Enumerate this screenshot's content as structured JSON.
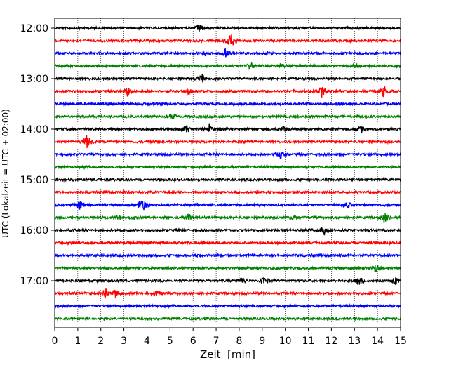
{
  "chart_data": {
    "type": "line",
    "title": "",
    "xlabel": "Zeit  [min]",
    "ylabel": "UTC (Lokalzeit = UTC + 02:00)",
    "xlim": [
      0,
      15
    ],
    "x_ticks": [
      0,
      1,
      2,
      3,
      4,
      5,
      6,
      7,
      8,
      9,
      10,
      11,
      12,
      13,
      14,
      15
    ],
    "x_tick_labels": [
      "0",
      "1",
      "2",
      "3",
      "4",
      "5",
      "6",
      "7",
      "8",
      "9",
      "10",
      "11",
      "12",
      "13",
      "14",
      "15"
    ],
    "y_tick_labels": [
      "12:00",
      "13:00",
      "14:00",
      "15:00",
      "16:00",
      "17:00"
    ],
    "trace_interval_min": 15,
    "grid": "vertical-dotted",
    "traces": [
      {
        "start": "12:00",
        "color": "#000000",
        "events": [
          [
            6.3,
            1.0
          ]
        ]
      },
      {
        "start": "12:15",
        "color": "#ff0000",
        "events": [
          [
            7.65,
            2.0
          ]
        ]
      },
      {
        "start": "12:30",
        "color": "#0000ff",
        "events": [
          [
            7.4,
            1.2
          ],
          [
            6.5,
            0.6
          ]
        ]
      },
      {
        "start": "12:45",
        "color": "#008000",
        "events": [
          [
            8.5,
            0.8
          ],
          [
            9.8,
            0.6
          ],
          [
            13.0,
            0.6
          ]
        ]
      },
      {
        "start": "13:00",
        "color": "#000000",
        "events": [
          [
            6.4,
            0.8
          ]
        ]
      },
      {
        "start": "13:15",
        "color": "#ff0000",
        "events": [
          [
            3.15,
            1.2
          ],
          [
            5.8,
            0.8
          ],
          [
            11.6,
            1.6
          ],
          [
            14.25,
            1.6
          ]
        ]
      },
      {
        "start": "13:30",
        "color": "#0000ff",
        "events": []
      },
      {
        "start": "13:45",
        "color": "#008000",
        "events": [
          [
            5.1,
            0.8
          ]
        ]
      },
      {
        "start": "14:00",
        "color": "#000000",
        "events": [
          [
            5.7,
            1.0
          ],
          [
            6.7,
            1.0
          ],
          [
            9.9,
            0.8
          ],
          [
            13.3,
            0.6
          ]
        ]
      },
      {
        "start": "14:15",
        "color": "#ff0000",
        "events": [
          [
            1.4,
            1.8
          ]
        ]
      },
      {
        "start": "14:30",
        "color": "#0000ff",
        "events": [
          [
            9.8,
            1.0
          ]
        ]
      },
      {
        "start": "14:45",
        "color": "#008000",
        "events": []
      },
      {
        "start": "15:00",
        "color": "#000000",
        "events": []
      },
      {
        "start": "15:15",
        "color": "#ff0000",
        "events": []
      },
      {
        "start": "15:30",
        "color": "#0000ff",
        "events": [
          [
            1.1,
            1.2
          ],
          [
            3.8,
            2.0
          ],
          [
            12.7,
            0.8
          ]
        ]
      },
      {
        "start": "15:45",
        "color": "#008000",
        "events": [
          [
            2.8,
            0.8
          ],
          [
            5.8,
            0.8
          ],
          [
            10.3,
            0.6
          ],
          [
            14.3,
            1.2
          ]
        ]
      },
      {
        "start": "16:00",
        "color": "#000000",
        "events": [
          [
            11.7,
            1.2
          ]
        ]
      },
      {
        "start": "16:15",
        "color": "#ff0000",
        "events": []
      },
      {
        "start": "16:30",
        "color": "#0000ff",
        "events": []
      },
      {
        "start": "16:45",
        "color": "#008000",
        "events": [
          [
            13.9,
            1.0
          ]
        ]
      },
      {
        "start": "17:00",
        "color": "#000000",
        "events": [
          [
            8.1,
            0.8
          ],
          [
            9.1,
            1.0
          ],
          [
            13.2,
            1.2
          ],
          [
            14.8,
            1.2
          ]
        ]
      },
      {
        "start": "17:15",
        "color": "#ff0000",
        "events": [
          [
            2.2,
            1.0
          ],
          [
            2.6,
            1.0
          ],
          [
            4.5,
            0.8
          ]
        ]
      },
      {
        "start": "17:30",
        "color": "#0000ff",
        "events": []
      },
      {
        "start": "17:45",
        "color": "#008000",
        "events": []
      }
    ]
  }
}
